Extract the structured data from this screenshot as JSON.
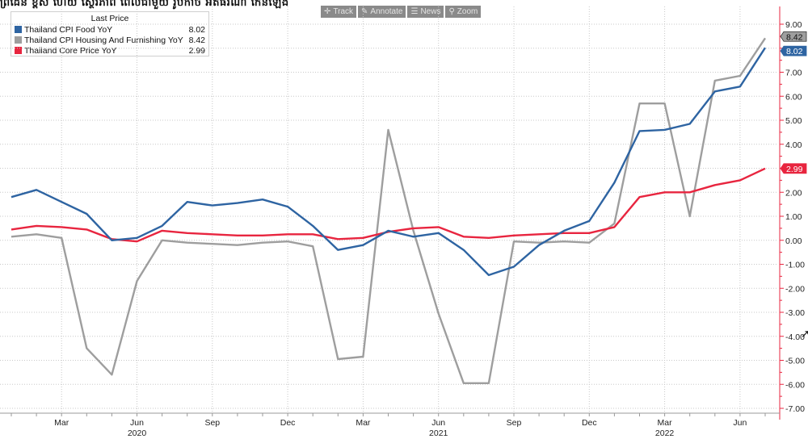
{
  "page": {
    "title": "ព្រំដែន ខ្ពស់ ហើយ ស្ថេរភាព ពេលជាមួយ រូបកាច អតិផរណា កើនឡើង"
  },
  "toolbar": {
    "buttons": [
      {
        "label": "Track",
        "icon": "crosshair-icon",
        "glyph": "✛"
      },
      {
        "label": "Annotate",
        "icon": "pencil-icon",
        "glyph": "✎"
      },
      {
        "label": "News",
        "icon": "news-icon",
        "glyph": "☰"
      },
      {
        "label": "Zoom",
        "icon": "zoom-icon",
        "glyph": "⚲"
      }
    ]
  },
  "legend": {
    "header": "Last Price"
  },
  "chart_data": {
    "type": "line",
    "x": [
      "2020-01",
      "2020-02",
      "2020-03",
      "2020-04",
      "2020-05",
      "2020-06",
      "2020-07",
      "2020-08",
      "2020-09",
      "2020-10",
      "2020-11",
      "2020-12",
      "2021-01",
      "2021-02",
      "2021-03",
      "2021-04",
      "2021-05",
      "2021-06",
      "2021-07",
      "2021-08",
      "2021-09",
      "2021-10",
      "2021-11",
      "2021-12",
      "2022-01",
      "2022-02",
      "2022-03",
      "2022-04",
      "2022-05",
      "2022-06",
      "2022-07"
    ],
    "series": [
      {
        "name": "Thailand CPI Food YoY",
        "color": "#2e64a2",
        "last": "8.02",
        "values": [
          1.8,
          2.1,
          1.6,
          1.1,
          0.0,
          0.1,
          0.6,
          1.6,
          1.45,
          1.55,
          1.7,
          1.4,
          0.6,
          -0.4,
          -0.2,
          0.4,
          0.15,
          0.3,
          -0.4,
          -1.45,
          -1.1,
          -0.2,
          0.4,
          0.8,
          2.4,
          4.55,
          4.6,
          4.85,
          6.2,
          6.4,
          8.02
        ]
      },
      {
        "name": "Thailand CPI Housing And Furnishing YoY",
        "color": "#9e9e9e",
        "last": "8.42",
        "values": [
          0.15,
          0.25,
          0.1,
          -4.5,
          -5.6,
          -1.7,
          0.0,
          -0.1,
          -0.15,
          -0.2,
          -0.1,
          -0.05,
          -0.25,
          -4.95,
          -4.85,
          4.6,
          0.4,
          -3.05,
          -5.95,
          -5.95,
          -0.05,
          -0.1,
          -0.05,
          -0.1,
          0.7,
          5.7,
          5.7,
          1.0,
          6.65,
          6.85,
          8.42
        ]
      },
      {
        "name": "Thailand Core Price YoY",
        "color": "#e8253f",
        "last": "2.99",
        "values": [
          0.45,
          0.6,
          0.55,
          0.45,
          0.05,
          -0.05,
          0.4,
          0.3,
          0.25,
          0.2,
          0.2,
          0.25,
          0.25,
          0.05,
          0.1,
          0.35,
          0.5,
          0.55,
          0.15,
          0.1,
          0.2,
          0.25,
          0.3,
          0.3,
          0.55,
          1.8,
          2.0,
          2.0,
          2.3,
          2.5,
          2.99
        ]
      }
    ],
    "yticks": [
      "9.00",
      "8.00",
      "7.00",
      "6.00",
      "5.00",
      "4.00",
      "3.00",
      "2.00",
      "1.00",
      "0.00",
      "-1.00",
      "-2.00",
      "-3.00",
      "-4.00",
      "-5.00",
      "-6.00",
      "-7.00"
    ],
    "ylim": [
      -7.2,
      9.5
    ],
    "xticks": [
      {
        "x": "2020-03",
        "label": "Mar"
      },
      {
        "x": "2020-06",
        "label": "Jun",
        "year": "2020"
      },
      {
        "x": "2020-09",
        "label": "Sep"
      },
      {
        "x": "2020-12",
        "label": "Dec"
      },
      {
        "x": "2021-03",
        "label": "Mar"
      },
      {
        "x": "2021-06",
        "label": "Jun",
        "year": "2021"
      },
      {
        "x": "2021-09",
        "label": "Sep"
      },
      {
        "x": "2021-12",
        "label": "Dec"
      },
      {
        "x": "2022-03",
        "label": "Mar"
      },
      {
        "x": "2022-06",
        "label": "Jun"
      }
    ],
    "year_labels": [
      {
        "x": "2020-06",
        "label": "2020"
      },
      {
        "x": "2021-06",
        "label": "2021"
      },
      {
        "x": "2022-03",
        "label": "2022"
      }
    ],
    "grid": true,
    "legend_position": "top-left",
    "axis_color": "#e8253f"
  }
}
